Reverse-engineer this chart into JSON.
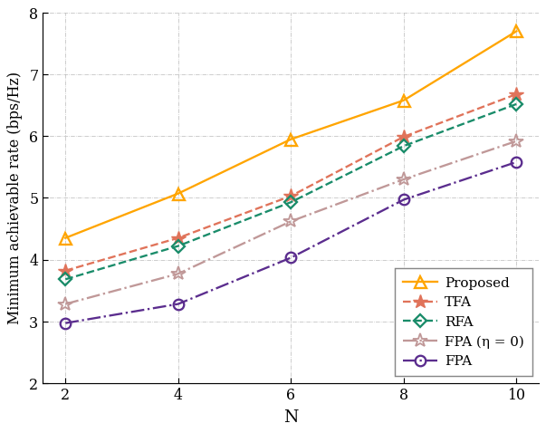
{
  "x": [
    2,
    4,
    6,
    8,
    10
  ],
  "proposed": [
    4.35,
    5.07,
    5.95,
    6.58,
    7.7
  ],
  "tfa": [
    3.82,
    4.35,
    5.03,
    5.99,
    6.68
  ],
  "rfa": [
    3.68,
    4.22,
    4.93,
    5.84,
    6.52
  ],
  "fpa_eta0": [
    3.28,
    3.77,
    4.62,
    5.3,
    5.92
  ],
  "fpa": [
    2.97,
    3.28,
    4.03,
    4.97,
    5.58
  ],
  "proposed_color": "#FFA500",
  "tfa_color": "#E0735A",
  "rfa_color": "#1A8C6A",
  "fpa_eta0_color": "#C09898",
  "fpa_color": "#5B2D8E",
  "xlabel": "N",
  "ylabel": "Minimum achievable rate (bps/Hz)",
  "ylim": [
    2,
    8
  ],
  "yticks": [
    2,
    3,
    4,
    5,
    6,
    7,
    8
  ],
  "xticks": [
    2,
    4,
    6,
    8,
    10
  ],
  "legend_labels": [
    "Proposed",
    "TFA",
    "RFA",
    "FPA (η = 0)",
    "FPA"
  ]
}
